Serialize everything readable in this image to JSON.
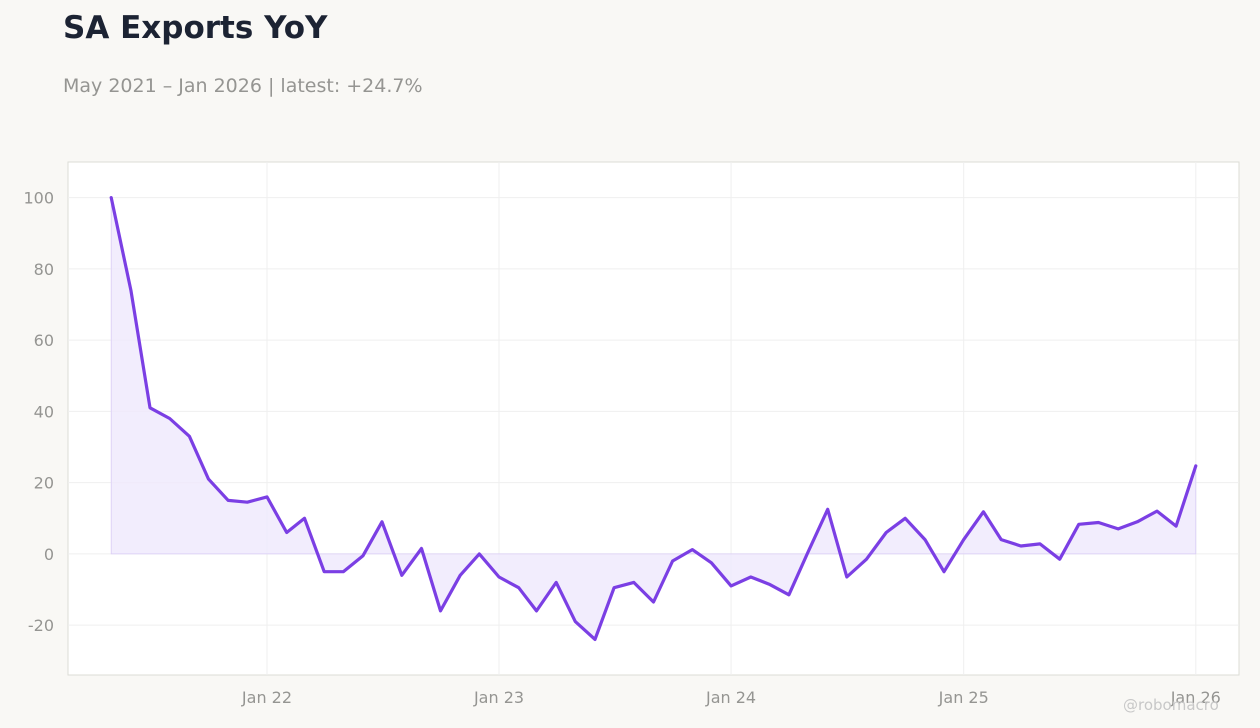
{
  "title": "SA Exports YoY",
  "subtitle": "May 2021 – Jan 2026 | latest: +24.7%",
  "watermark": "@robomacro",
  "colors": {
    "line": "#7b3fe4",
    "fill": "#efe8fc",
    "background": "#f9f8f5",
    "plot_background": "#ffffff",
    "grid": "#efefef",
    "title": "#1c2333",
    "muted": "#959592"
  },
  "chart_data": {
    "type": "area",
    "title": "SA Exports YoY",
    "xlabel": "",
    "ylabel": "",
    "grid": true,
    "legend": "none",
    "ylim": [
      -34,
      110
    ],
    "xlim": [
      "2021-02-22",
      "2026-03-10"
    ],
    "y_ticks": [
      100,
      80,
      60,
      40,
      20,
      0,
      -20
    ],
    "y_tick_labels": [
      "100",
      "80",
      "60",
      "40",
      "20",
      "0",
      "-20"
    ],
    "x_ticks": [
      "2022-01-01",
      "2023-01-01",
      "2024-01-01",
      "2025-01-01",
      "2026-01-01"
    ],
    "x_tick_labels": [
      "Jan 22",
      "Jan 23",
      "Jan 24",
      "Jan 25",
      "Jan 26"
    ],
    "series": [
      {
        "x": [
          "2021-05",
          "2021-06",
          "2021-07",
          "2021-08",
          "2021-09",
          "2021-10",
          "2021-11",
          "2021-12",
          "2022-01",
          "2022-02",
          "2022-03",
          "2022-04",
          "2022-05",
          "2022-06",
          "2022-07",
          "2022-08",
          "2022-09",
          "2022-10",
          "2022-11",
          "2022-12",
          "2023-01",
          "2023-02",
          "2023-03",
          "2023-04",
          "2023-05",
          "2023-06",
          "2023-07",
          "2023-08",
          "2023-09",
          "2023-10",
          "2023-11",
          "2023-12",
          "2024-01",
          "2024-02",
          "2024-03",
          "2024-04",
          "2024-05",
          "2024-06",
          "2024-07",
          "2024-08",
          "2024-09",
          "2024-10",
          "2024-11",
          "2024-12",
          "2025-01",
          "2025-02",
          "2025-03",
          "2025-04",
          "2025-05",
          "2025-06",
          "2025-07",
          "2025-08",
          "2025-09",
          "2025-10",
          "2025-11",
          "2025-12",
          "2026-01"
        ],
        "values": [
          100,
          74,
          41,
          38,
          33,
          21,
          15,
          14.5,
          16,
          6,
          10,
          -5,
          -5,
          -0.5,
          9,
          -6,
          1.5,
          -16,
          -6,
          0,
          -6.5,
          -9.5,
          -16,
          -8,
          -19,
          -24,
          -9.5,
          -8,
          -13.5,
          -2,
          1.2,
          -2.5,
          -9,
          -6.5,
          -8.5,
          -11.5,
          0.5,
          12.5,
          -6.5,
          -1.5,
          6,
          10,
          4,
          -5,
          4,
          11.8,
          4,
          2.2,
          2.8,
          -1.5,
          8.3,
          8.8,
          7,
          9,
          12,
          7.8,
          24.7
        ]
      }
    ]
  }
}
